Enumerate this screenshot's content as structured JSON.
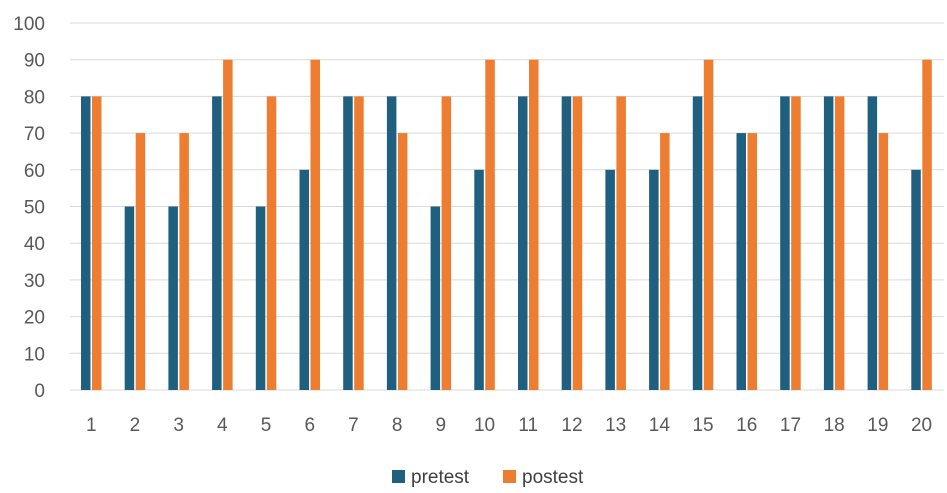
{
  "chart_data": {
    "type": "bar",
    "title": "",
    "xlabel": "",
    "ylabel": "",
    "categories": [
      "1",
      "2",
      "3",
      "4",
      "5",
      "6",
      "7",
      "8",
      "9",
      "10",
      "11",
      "12",
      "13",
      "14",
      "15",
      "16",
      "17",
      "18",
      "19",
      "20"
    ],
    "series": [
      {
        "name": "pretest",
        "color": "#1f5f7f",
        "values": [
          80,
          50,
          50,
          80,
          50,
          60,
          80,
          80,
          50,
          60,
          80,
          80,
          60,
          60,
          80,
          70,
          80,
          80,
          80,
          60
        ]
      },
      {
        "name": "postest",
        "color": "#ed7d31",
        "values": [
          80,
          70,
          70,
          90,
          80,
          90,
          80,
          70,
          80,
          90,
          90,
          80,
          80,
          70,
          90,
          70,
          80,
          80,
          70,
          90
        ]
      }
    ],
    "ylim": [
      0,
      100
    ],
    "yticks": [
      0,
      10,
      20,
      30,
      40,
      50,
      60,
      70,
      80,
      90,
      100
    ],
    "grid": true,
    "legend_position": "bottom"
  }
}
